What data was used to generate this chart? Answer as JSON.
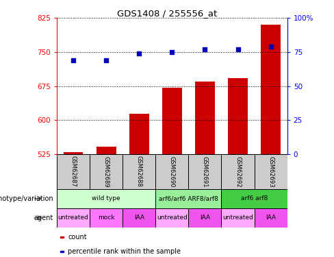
{
  "title": "GDS1408 / 255556_at",
  "samples": [
    "GSM62687",
    "GSM62689",
    "GSM62688",
    "GSM62690",
    "GSM62691",
    "GSM62692",
    "GSM62693"
  ],
  "counts": [
    530,
    542,
    614,
    672,
    685,
    693,
    810
  ],
  "percentiles": [
    69,
    69,
    74,
    75,
    77,
    77,
    79
  ],
  "ylim_left": [
    525,
    825
  ],
  "ylim_right": [
    0,
    100
  ],
  "yticks_left": [
    525,
    600,
    675,
    750,
    825
  ],
  "yticks_right": [
    0,
    25,
    50,
    75,
    100
  ],
  "ytick_labels_right": [
    "0",
    "25",
    "50",
    "75",
    "100%"
  ],
  "bar_color": "#cc0000",
  "dot_color": "#0000bb",
  "bar_width": 0.6,
  "background_color": "#ffffff",
  "genotype_groups": [
    {
      "label": "wild type",
      "start": 0,
      "end": 2,
      "color": "#ccffcc"
    },
    {
      "label": "arf6/arf6 ARF8/arf8",
      "start": 3,
      "end": 4,
      "color": "#99ee99"
    },
    {
      "label": "arf6 arf8",
      "start": 5,
      "end": 6,
      "color": "#44cc44"
    }
  ],
  "agent_groups": [
    {
      "label": "untreated",
      "start": 0,
      "end": 0,
      "color": "#ffaaff"
    },
    {
      "label": "mock",
      "start": 1,
      "end": 1,
      "color": "#ff77ff"
    },
    {
      "label": "IAA",
      "start": 2,
      "end": 2,
      "color": "#ee55ee"
    },
    {
      "label": "untreated",
      "start": 3,
      "end": 3,
      "color": "#ffaaff"
    },
    {
      "label": "IAA",
      "start": 4,
      "end": 4,
      "color": "#ee55ee"
    },
    {
      "label": "untreated",
      "start": 5,
      "end": 5,
      "color": "#ffaaff"
    },
    {
      "label": "IAA",
      "start": 6,
      "end": 6,
      "color": "#ee55ee"
    }
  ],
  "legend_items": [
    {
      "label": "count",
      "color": "#cc0000"
    },
    {
      "label": "percentile rank within the sample",
      "color": "#0000bb"
    }
  ],
  "left_labels": [
    "genotype/variation",
    "agent"
  ],
  "sample_box_color": "#cccccc"
}
